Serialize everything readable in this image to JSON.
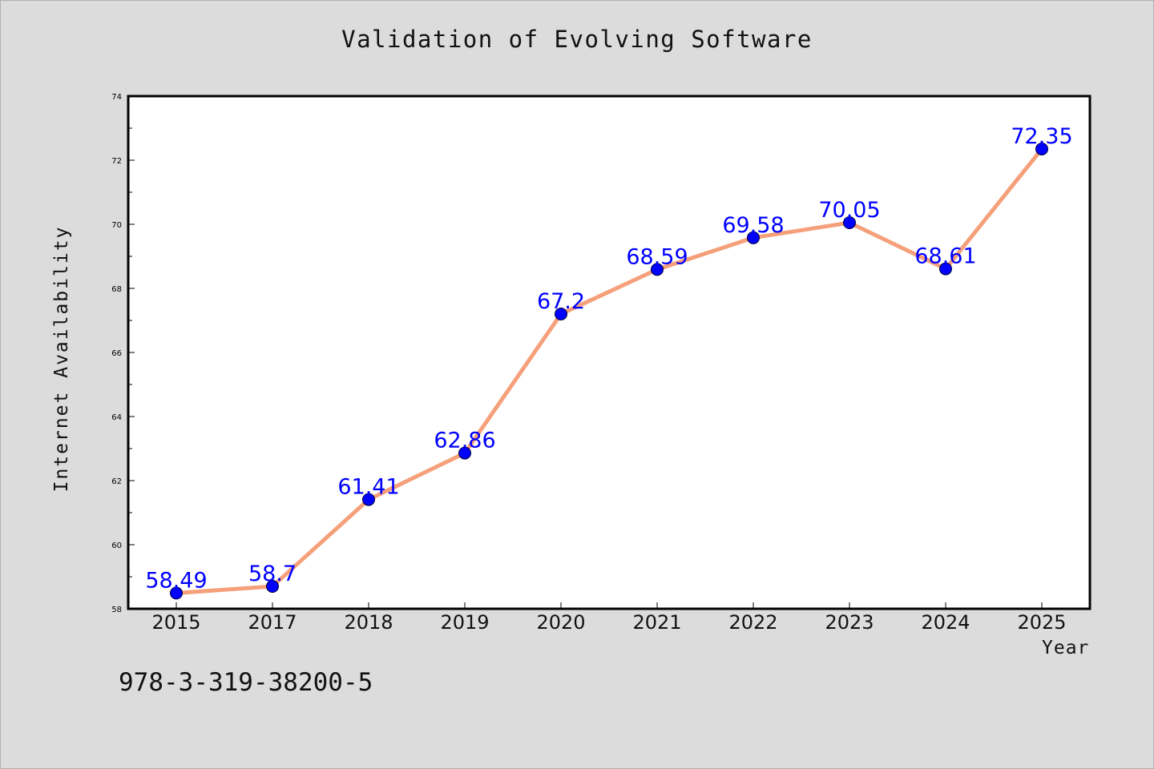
{
  "chart_data": {
    "type": "line",
    "title": "Validation of Evolving Software",
    "xlabel": "Year",
    "ylabel": "Internet Availability",
    "categories": [
      "2015",
      "2017",
      "2018",
      "2019",
      "2020",
      "2021",
      "2022",
      "2023",
      "2024",
      "2025"
    ],
    "series": [
      {
        "values": [
          58.49,
          58.7,
          61.41,
          62.86,
          67.2,
          68.59,
          69.58,
          70.05,
          68.61,
          72.35
        ],
        "data_labels": [
          "58.49",
          "58.7",
          "61.41",
          "62.86",
          "67.2",
          "68.59",
          "69.58",
          "70.05",
          "68.61",
          "72.35"
        ]
      }
    ],
    "ylim": [
      58,
      74
    ],
    "yticks": [
      "58",
      "60",
      "62",
      "64",
      "66",
      "68",
      "70",
      "72",
      "74"
    ],
    "grid": false,
    "legend": "none",
    "colors": {
      "line": "#f5a07a",
      "marker": "#0000ff",
      "data_label": "#0000ff",
      "background": "#dcdcdc",
      "plot_background": "#ffffff"
    }
  },
  "annotation": "978-3-319-38200-5"
}
